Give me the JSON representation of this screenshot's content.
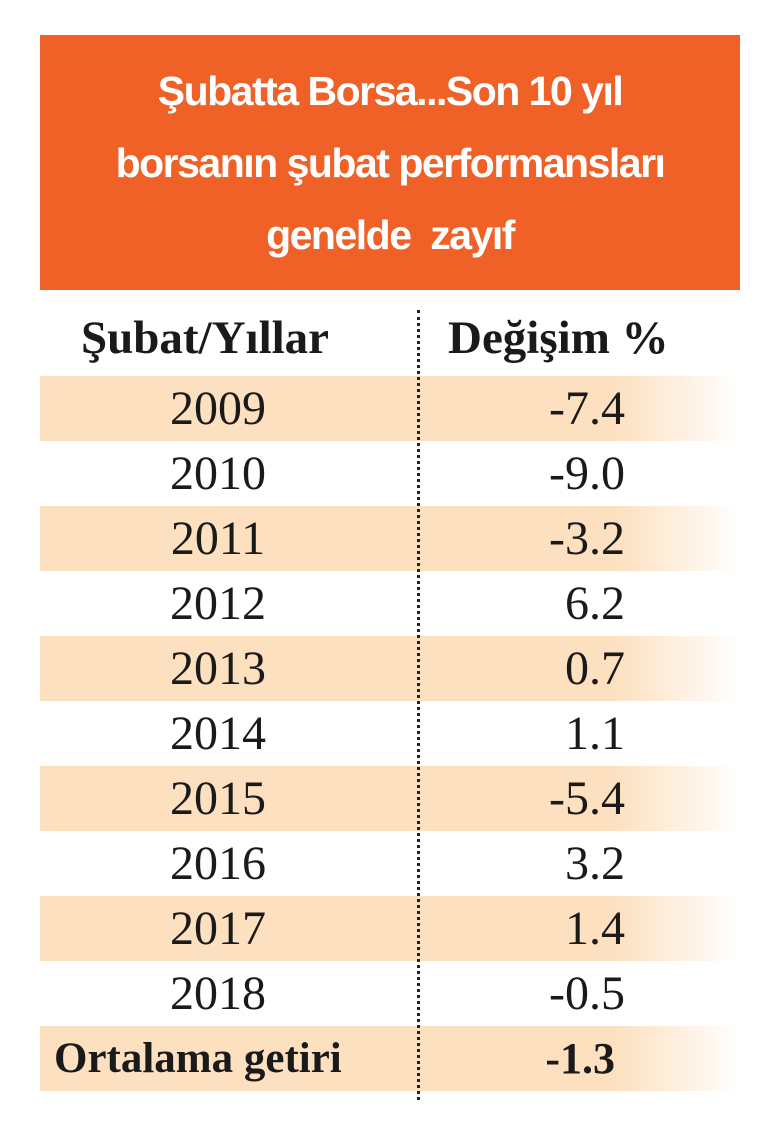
{
  "title": {
    "lines": [
      "Şubatta Borsa...Son 10 yıl",
      "borsanın şubat performansları",
      "genelde  zayıf"
    ]
  },
  "table": {
    "header": [
      "Şubat/Yıllar",
      "Değişim %"
    ],
    "rows": [
      [
        "2009",
        "-7.4"
      ],
      [
        "2010",
        "-9.0"
      ],
      [
        "2011",
        "-3.2"
      ],
      [
        "2012",
        "6.2"
      ],
      [
        "2013",
        "0.7"
      ],
      [
        "2014",
        "1.1"
      ],
      [
        "2015",
        "-5.4"
      ],
      [
        "2016",
        "3.2"
      ],
      [
        "2017",
        "1.4"
      ],
      [
        "2018",
        "-0.5"
      ]
    ],
    "footer": [
      "Ortalama getiri",
      "-1.3"
    ]
  }
}
